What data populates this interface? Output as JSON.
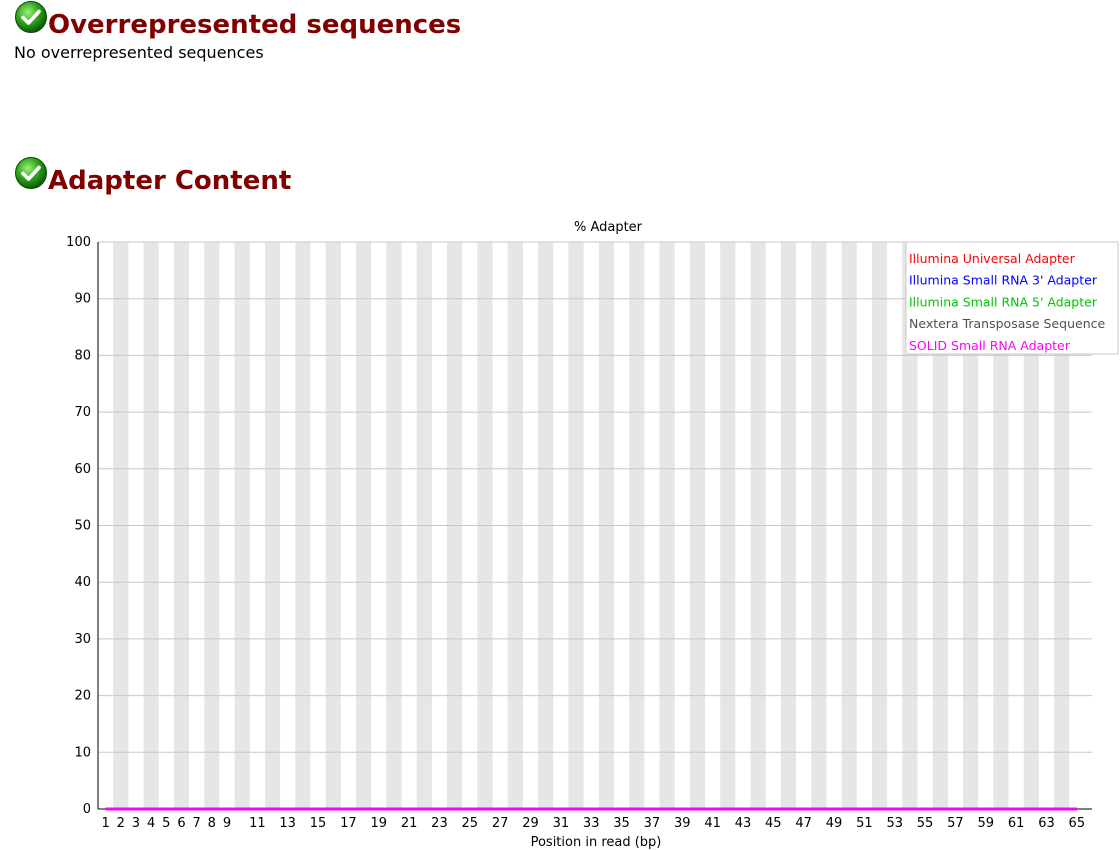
{
  "sections": {
    "overrepresented": {
      "title": "Overrepresented sequences",
      "message": "No overrepresented sequences",
      "status_icon": "pass-check-icon"
    },
    "adapter": {
      "title": "Adapter Content",
      "status_icon": "pass-check-icon"
    }
  },
  "colors": {
    "title": "#800000",
    "stripe": "#e6e6e6",
    "gridline": "#c8c8c8"
  },
  "chart_data": {
    "type": "line",
    "title": "% Adapter",
    "xlabel": "Position in read (bp)",
    "ylabel": "",
    "ylim": [
      0,
      100
    ],
    "yticks": [
      0,
      10,
      20,
      30,
      40,
      50,
      60,
      70,
      80,
      90,
      100
    ],
    "x": [
      "1",
      "2",
      "3",
      "4",
      "5",
      "6",
      "7",
      "8",
      "9",
      "10",
      "11",
      "12",
      "13",
      "14",
      "15",
      "16",
      "17",
      "18",
      "19",
      "20",
      "21",
      "22",
      "23",
      "24",
      "25",
      "26",
      "27",
      "28",
      "29",
      "30",
      "31",
      "32",
      "33",
      "34",
      "35",
      "36",
      "37",
      "38",
      "39",
      "40",
      "41",
      "42",
      "43",
      "44",
      "45",
      "46",
      "47",
      "48",
      "49",
      "50",
      "51",
      "52",
      "53",
      "54",
      "55",
      "56",
      "57",
      "58",
      "59",
      "60",
      "61",
      "62",
      "63",
      "64",
      "65"
    ],
    "xtick_labels": [
      "1",
      "2",
      "3",
      "4",
      "5",
      "6",
      "7",
      "8",
      "9",
      "",
      "11",
      "",
      "13",
      "",
      "15",
      "",
      "17",
      "",
      "19",
      "",
      "21",
      "",
      "23",
      "",
      "25",
      "",
      "27",
      "",
      "29",
      "",
      "31",
      "",
      "33",
      "",
      "35",
      "",
      "37",
      "",
      "39",
      "",
      "41",
      "",
      "43",
      "",
      "45",
      "",
      "47",
      "",
      "49",
      "",
      "51",
      "",
      "53",
      "",
      "55",
      "",
      "57",
      "",
      "59",
      "",
      "61",
      "",
      "63",
      "",
      "65"
    ],
    "grid": true,
    "legend_position": "top-right",
    "series": [
      {
        "name": "Illumina Universal Adapter",
        "color": "#ff0000",
        "values": [
          0,
          0,
          0,
          0,
          0,
          0,
          0,
          0,
          0,
          0,
          0,
          0,
          0,
          0,
          0,
          0,
          0,
          0,
          0,
          0,
          0,
          0,
          0,
          0,
          0,
          0,
          0,
          0,
          0,
          0,
          0,
          0,
          0,
          0,
          0,
          0,
          0,
          0,
          0,
          0,
          0,
          0,
          0,
          0,
          0,
          0,
          0,
          0,
          0,
          0,
          0,
          0,
          0,
          0,
          0,
          0,
          0,
          0,
          0,
          0,
          0,
          0,
          0,
          0,
          0
        ]
      },
      {
        "name": "Illumina Small RNA 3' Adapter",
        "color": "#0000ff",
        "values": [
          0,
          0,
          0,
          0,
          0,
          0,
          0,
          0,
          0,
          0,
          0,
          0,
          0,
          0,
          0,
          0,
          0,
          0,
          0,
          0,
          0,
          0,
          0,
          0,
          0,
          0,
          0,
          0,
          0,
          0,
          0,
          0,
          0,
          0,
          0,
          0,
          0,
          0,
          0,
          0,
          0,
          0,
          0,
          0,
          0,
          0,
          0,
          0,
          0,
          0,
          0,
          0,
          0,
          0,
          0,
          0,
          0,
          0,
          0,
          0,
          0,
          0,
          0,
          0,
          0
        ]
      },
      {
        "name": "Illumina Small RNA 5' Adapter",
        "color": "#00c800",
        "values": [
          0,
          0,
          0,
          0,
          0,
          0,
          0,
          0,
          0,
          0,
          0,
          0,
          0,
          0,
          0,
          0,
          0,
          0,
          0,
          0,
          0,
          0,
          0,
          0,
          0,
          0,
          0,
          0,
          0,
          0,
          0,
          0,
          0,
          0,
          0,
          0,
          0,
          0,
          0,
          0,
          0,
          0,
          0,
          0,
          0,
          0,
          0,
          0,
          0,
          0,
          0,
          0,
          0,
          0,
          0,
          0,
          0,
          0,
          0,
          0,
          0,
          0,
          0,
          0,
          0
        ]
      },
      {
        "name": "Nextera Transposase Sequence",
        "color": "#505050",
        "values": [
          0,
          0,
          0,
          0,
          0,
          0,
          0,
          0,
          0,
          0,
          0,
          0,
          0,
          0,
          0,
          0,
          0,
          0,
          0,
          0,
          0,
          0,
          0,
          0,
          0,
          0,
          0,
          0,
          0,
          0,
          0,
          0,
          0,
          0,
          0,
          0,
          0,
          0,
          0,
          0,
          0,
          0,
          0,
          0,
          0,
          0,
          0,
          0,
          0,
          0,
          0,
          0,
          0,
          0,
          0,
          0,
          0,
          0,
          0,
          0,
          0,
          0,
          0,
          0,
          0
        ]
      },
      {
        "name": "SOLID Small RNA Adapter",
        "color": "#ff00ff",
        "values": [
          0,
          0,
          0,
          0,
          0,
          0,
          0,
          0,
          0,
          0,
          0,
          0,
          0,
          0,
          0,
          0,
          0,
          0,
          0,
          0,
          0,
          0,
          0,
          0,
          0,
          0,
          0,
          0,
          0,
          0,
          0,
          0,
          0,
          0,
          0,
          0,
          0,
          0,
          0,
          0,
          0,
          0,
          0,
          0,
          0,
          0,
          0,
          0,
          0,
          0,
          0,
          0,
          0,
          0,
          0,
          0,
          0,
          0,
          0,
          0,
          0,
          0,
          0,
          0,
          0
        ]
      }
    ]
  }
}
